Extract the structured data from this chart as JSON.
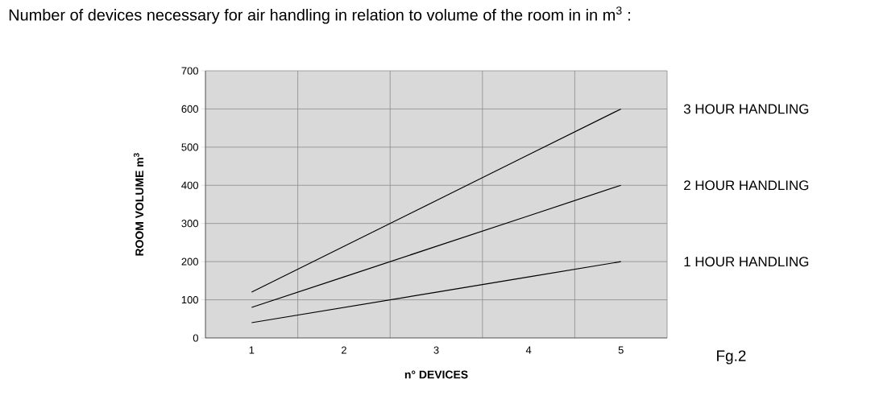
{
  "chart_data": {
    "type": "line",
    "title": "Number of devices necessary for air handling in relation to volume of the room in in m$^{3}$ :",
    "xlabel": "n° DEVICES",
    "ylabel": "ROOM VOLUME  m$^{3}$",
    "categories": [
      "1",
      "2",
      "3",
      "4",
      "5"
    ],
    "series": [
      {
        "name": "1 HOUR HANDLING",
        "color": "#000000",
        "values": [
          40,
          80,
          120,
          160,
          200
        ]
      },
      {
        "name": "2 HOUR HANDLING",
        "color": "#000000",
        "values": [
          80,
          160,
          240,
          320,
          400
        ]
      },
      {
        "name": "3 HOUR HANDLING",
        "color": "#000000",
        "values": [
          120,
          240,
          360,
          480,
          600
        ]
      }
    ],
    "ylim": [
      0,
      700
    ],
    "yticks": [
      0,
      100,
      200,
      300,
      400,
      500,
      600,
      700
    ],
    "grid": true,
    "legend": false,
    "marker": "none",
    "line_style": "solid",
    "annotations": [
      "Fg.2"
    ]
  }
}
